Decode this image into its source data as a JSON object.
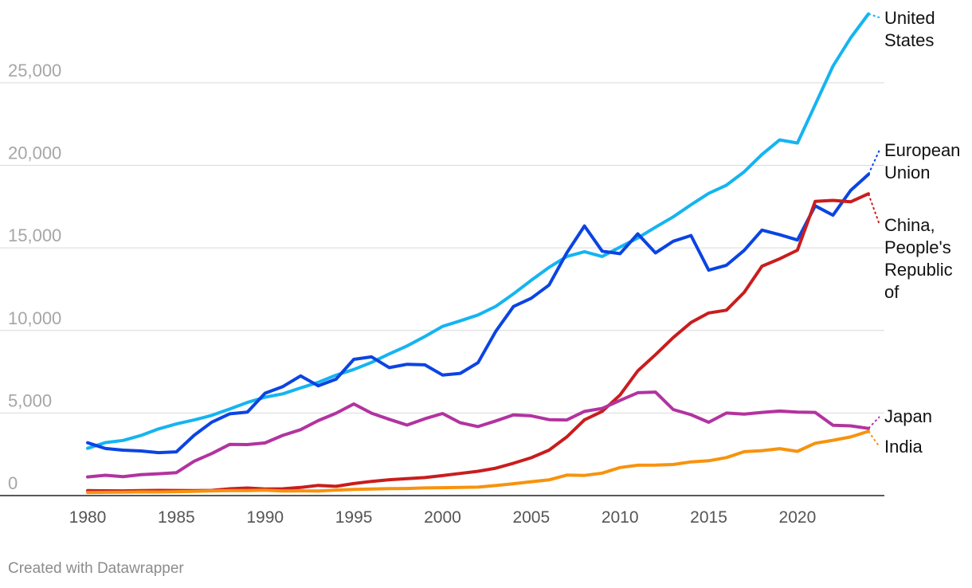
{
  "chart_data": {
    "type": "line",
    "title": "",
    "xlabel": "",
    "ylabel": "",
    "x": [
      1980,
      1981,
      1982,
      1983,
      1984,
      1985,
      1986,
      1987,
      1988,
      1989,
      1990,
      1991,
      1992,
      1993,
      1994,
      1995,
      1996,
      1997,
      1998,
      1999,
      2000,
      2001,
      2002,
      2003,
      2004,
      2005,
      2006,
      2007,
      2008,
      2009,
      2010,
      2011,
      2012,
      2013,
      2014,
      2015,
      2016,
      2017,
      2018,
      2019,
      2020,
      2021,
      2022,
      2023,
      2024
    ],
    "xlim": [
      1980,
      2024
    ],
    "ylim": [
      0,
      29000
    ],
    "x_ticks": [
      1980,
      1985,
      1990,
      1995,
      2000,
      2005,
      2010,
      2015,
      2020
    ],
    "y_ticks": [
      0,
      5000,
      10000,
      15000,
      20000,
      25000
    ],
    "y_tick_labels": [
      "0",
      "5,000",
      "10,000",
      "15,000",
      "20,000",
      "25,000"
    ],
    "grid": true,
    "legend": "direct labels at right end of lines",
    "series": [
      {
        "name": "United States",
        "color": "#15b4f1",
        "label_lines": [
          "United",
          "States"
        ],
        "values": [
          2860,
          3210,
          3340,
          3640,
          4040,
          4340,
          4580,
          4860,
          5240,
          5640,
          5960,
          6160,
          6520,
          6860,
          7290,
          7640,
          8070,
          8580,
          9060,
          9630,
          10250,
          10580,
          10940,
          11460,
          12220,
          13040,
          13820,
          14480,
          14770,
          14480,
          15050,
          15600,
          16250,
          16880,
          17610,
          18300,
          18800,
          19610,
          20660,
          21540,
          21350,
          23680,
          26010,
          27720,
          29170
        ]
      },
      {
        "name": "European Union",
        "color": "#0b44e3",
        "label_lines": [
          "European",
          "Union"
        ],
        "values": [
          3200,
          2850,
          2750,
          2700,
          2600,
          2650,
          3650,
          4450,
          4950,
          5050,
          6200,
          6600,
          7250,
          6650,
          7050,
          8250,
          8400,
          7750,
          7950,
          7920,
          7300,
          7400,
          8050,
          9950,
          11450,
          11950,
          12750,
          14700,
          16330,
          14800,
          14650,
          15850,
          14700,
          15400,
          15750,
          13650,
          13950,
          14850,
          16080,
          15800,
          15480,
          17550,
          16980,
          18480,
          19450
        ]
      },
      {
        "name": "China, People's Republic of",
        "color": "#c91d1d",
        "label_lines": [
          "China,",
          "People's",
          "Republic",
          "of"
        ],
        "values": [
          305,
          290,
          285,
          305,
          315,
          310,
          300,
          315,
          410,
          460,
          400,
          410,
          490,
          620,
          560,
          730,
          860,
          960,
          1030,
          1090,
          1210,
          1340,
          1470,
          1660,
          1960,
          2290,
          2750,
          3550,
          4590,
          5100,
          6090,
          7550,
          8530,
          9570,
          10480,
          11060,
          11230,
          12310,
          13890,
          14340,
          14860,
          17820,
          17880,
          17790,
          18280
        ]
      },
      {
        "name": "Japan",
        "color": "#b2339f",
        "label_lines": [
          "Japan"
        ],
        "values": [
          1130,
          1230,
          1150,
          1270,
          1320,
          1390,
          2080,
          2550,
          3100,
          3090,
          3190,
          3650,
          3990,
          4540,
          4990,
          5550,
          4990,
          4620,
          4270,
          4650,
          4970,
          4410,
          4180,
          4520,
          4890,
          4830,
          4600,
          4580,
          5100,
          5280,
          5760,
          6230,
          6270,
          5210,
          4900,
          4440,
          5000,
          4930,
          5040,
          5120,
          5050,
          5040,
          4260,
          4220,
          4070
        ]
      },
      {
        "name": "India",
        "color": "#f7930d",
        "label_lines": [
          "India"
        ],
        "values": [
          190,
          200,
          205,
          220,
          215,
          235,
          255,
          285,
          300,
          305,
          325,
          275,
          285,
          280,
          335,
          370,
          400,
          420,
          430,
          465,
          480,
          490,
          510,
          610,
          720,
          840,
          950,
          1240,
          1220,
          1360,
          1700,
          1840,
          1850,
          1880,
          2040,
          2110,
          2300,
          2660,
          2720,
          2840,
          2680,
          3170,
          3350,
          3550,
          3890
        ]
      }
    ]
  },
  "footer": "Created with Datawrapper"
}
